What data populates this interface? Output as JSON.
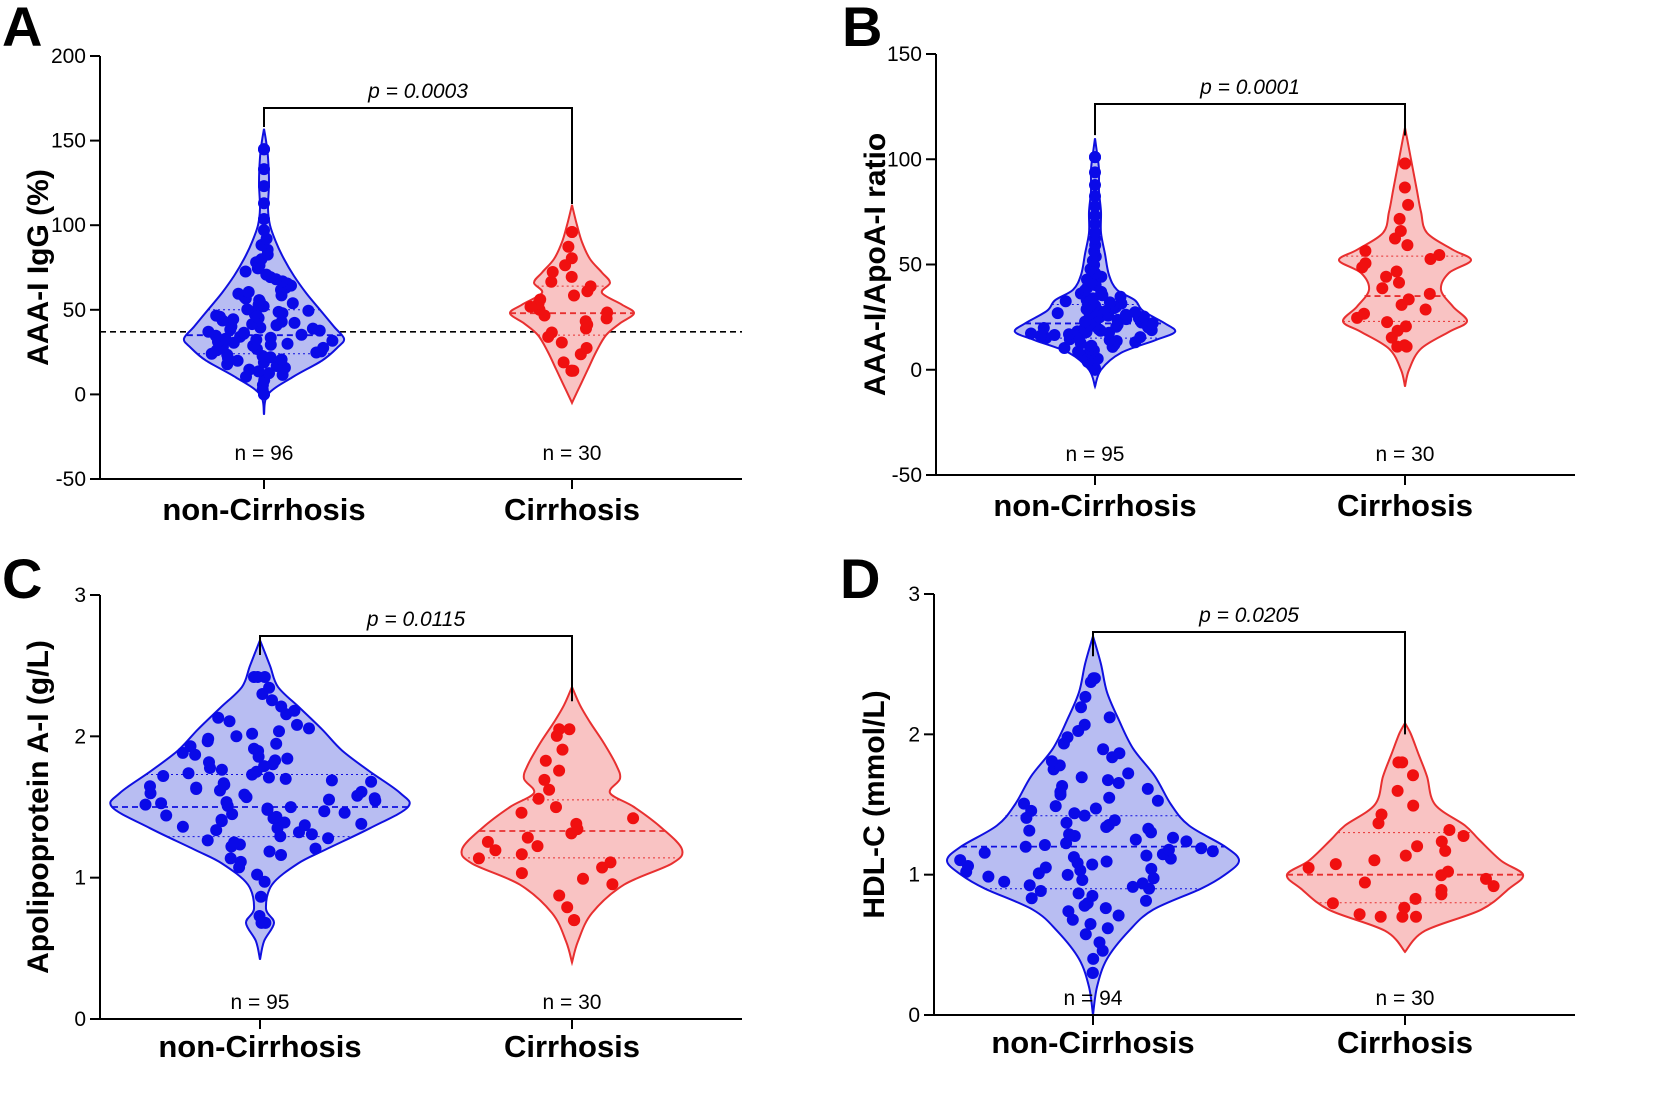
{
  "colors": {
    "non_cirrhosis_line": "#1010e0",
    "non_cirrhosis_fill": "#b8bdf2",
    "non_cirrhosis_dot": "#0a0ae8",
    "cirrhosis_line": "#e83030",
    "cirrhosis_fill": "#f9c3c3",
    "cirrhosis_dot": "#f01010",
    "axis": "#000000"
  },
  "chart_data": [
    {
      "id": "A",
      "type": "violin",
      "letter": "A",
      "ylabel": "AAA-I IgG (%)",
      "ylim": [
        -50,
        200
      ],
      "yticks": [
        -50,
        0,
        50,
        100,
        150,
        200
      ],
      "categories": [
        "non-Cirrhosis",
        "Cirrhosis"
      ],
      "n_labels": [
        "n = 96",
        "n = 30"
      ],
      "p_label": "p = 0.0003",
      "reference_line": 37,
      "groups": [
        {
          "name": "non-Cirrhosis",
          "n": 96,
          "min": 0,
          "max": 145,
          "q1": 24,
          "median": 35,
          "q3": 50,
          "density": [
            [
              -12,
              0
            ],
            [
              0,
              4
            ],
            [
              10,
              28
            ],
            [
              20,
              58
            ],
            [
              28,
              74
            ],
            [
              33,
              80
            ],
            [
              40,
              70
            ],
            [
              50,
              56
            ],
            [
              60,
              42
            ],
            [
              70,
              30
            ],
            [
              80,
              20
            ],
            [
              90,
              12
            ],
            [
              100,
              6
            ],
            [
              110,
              4
            ],
            [
              125,
              5
            ],
            [
              140,
              4
            ],
            [
              150,
              2
            ],
            [
              157,
              0
            ]
          ]
        },
        {
          "name": "Cirrhosis",
          "n": 30,
          "min": 14,
          "max": 96,
          "q1": 35,
          "median": 48,
          "q3": 64,
          "density": [
            [
              -5,
              0
            ],
            [
              5,
              8
            ],
            [
              15,
              16
            ],
            [
              25,
              24
            ],
            [
              35,
              34
            ],
            [
              42,
              48
            ],
            [
              48,
              62
            ],
            [
              53,
              50
            ],
            [
              60,
              30
            ],
            [
              66,
              38
            ],
            [
              72,
              30
            ],
            [
              80,
              18
            ],
            [
              90,
              10
            ],
            [
              100,
              5
            ],
            [
              112,
              0
            ]
          ]
        }
      ]
    },
    {
      "id": "B",
      "type": "violin",
      "letter": "B",
      "ylabel": "AAA-I/ApoA-I ratio",
      "ylim": [
        -50,
        150
      ],
      "yticks": [
        -50,
        0,
        50,
        100,
        150
      ],
      "categories": [
        "non-Cirrhosis",
        "Cirrhosis"
      ],
      "n_labels": [
        "n = 95",
        "n = 30"
      ],
      "p_label": "p = 0.0001",
      "groups": [
        {
          "name": "non-Cirrhosis",
          "n": 95,
          "min": 0,
          "max": 101,
          "q1": 15,
          "median": 22,
          "q3": 31,
          "density": [
            [
              -8,
              0
            ],
            [
              0,
              6
            ],
            [
              8,
              26
            ],
            [
              14,
              60
            ],
            [
              18,
              80
            ],
            [
              22,
              70
            ],
            [
              28,
              48
            ],
            [
              33,
              40
            ],
            [
              38,
              22
            ],
            [
              45,
              14
            ],
            [
              55,
              10
            ],
            [
              65,
              6
            ],
            [
              75,
              6
            ],
            [
              85,
              4
            ],
            [
              95,
              4
            ],
            [
              103,
              2
            ],
            [
              110,
              0
            ]
          ]
        },
        {
          "name": "Cirrhosis",
          "n": 30,
          "min": 11,
          "max": 98,
          "q1": 23,
          "median": 35,
          "q3": 54,
          "density": [
            [
              -8,
              0
            ],
            [
              0,
              4
            ],
            [
              10,
              16
            ],
            [
              18,
              44
            ],
            [
              23,
              62
            ],
            [
              30,
              48
            ],
            [
              38,
              36
            ],
            [
              46,
              44
            ],
            [
              52,
              66
            ],
            [
              57,
              48
            ],
            [
              65,
              22
            ],
            [
              75,
              16
            ],
            [
              85,
              12
            ],
            [
              95,
              8
            ],
            [
              105,
              4
            ],
            [
              115,
              0
            ]
          ]
        }
      ]
    },
    {
      "id": "C",
      "type": "violin",
      "letter": "C",
      "ylabel": "Apolipoprotein A-I (g/L)",
      "ylim": [
        0,
        3
      ],
      "yticks": [
        0,
        1,
        2,
        3
      ],
      "categories": [
        "non-Cirrhosis",
        "Cirrhosis"
      ],
      "n_labels": [
        "n = 95",
        "n = 30"
      ],
      "p_label": "p = 0.0115",
      "groups": [
        {
          "name": "non-Cirrhosis",
          "n": 95,
          "min": 0.68,
          "max": 2.42,
          "q1": 1.29,
          "median": 1.5,
          "q3": 1.73,
          "density": [
            [
              0.42,
              0
            ],
            [
              0.55,
              4
            ],
            [
              0.68,
              14
            ],
            [
              0.78,
              6
            ],
            [
              0.95,
              12
            ],
            [
              1.1,
              38
            ],
            [
              1.2,
              66
            ],
            [
              1.35,
              110
            ],
            [
              1.5,
              148
            ],
            [
              1.6,
              140
            ],
            [
              1.75,
              110
            ],
            [
              1.9,
              82
            ],
            [
              2.05,
              62
            ],
            [
              2.2,
              40
            ],
            [
              2.35,
              18
            ],
            [
              2.5,
              10
            ],
            [
              2.68,
              0
            ]
          ]
        },
        {
          "name": "Cirrhosis",
          "n": 30,
          "min": 0.7,
          "max": 2.05,
          "q1": 1.14,
          "median": 1.33,
          "q3": 1.55,
          "density": [
            [
              0.4,
              0
            ],
            [
              0.55,
              6
            ],
            [
              0.75,
              20
            ],
            [
              0.95,
              52
            ],
            [
              1.1,
              100
            ],
            [
              1.2,
              110
            ],
            [
              1.35,
              90
            ],
            [
              1.5,
              62
            ],
            [
              1.6,
              38
            ],
            [
              1.7,
              48
            ],
            [
              1.8,
              44
            ],
            [
              1.95,
              32
            ],
            [
              2.1,
              18
            ],
            [
              2.22,
              8
            ],
            [
              2.35,
              0
            ]
          ]
        }
      ]
    },
    {
      "id": "D",
      "type": "violin",
      "letter": "D",
      "ylabel": "HDL-C (mmol/L)",
      "ylim": [
        0,
        3
      ],
      "yticks": [
        0,
        1,
        2,
        3
      ],
      "categories": [
        "non-Cirrhosis",
        "Cirrhosis"
      ],
      "n_labels": [
        "n = 94",
        "n = 30"
      ],
      "p_label": "p = 0.0205",
      "groups": [
        {
          "name": "non-Cirrhosis",
          "n": 94,
          "min": 0.3,
          "max": 2.4,
          "q1": 0.9,
          "median": 1.2,
          "q3": 1.42,
          "density": [
            [
              0,
              0
            ],
            [
              0.2,
              4
            ],
            [
              0.4,
              14
            ],
            [
              0.6,
              36
            ],
            [
              0.75,
              60
            ],
            [
              0.9,
              108
            ],
            [
              1.0,
              132
            ],
            [
              1.1,
              146
            ],
            [
              1.2,
              132
            ],
            [
              1.35,
              96
            ],
            [
              1.5,
              78
            ],
            [
              1.7,
              62
            ],
            [
              1.9,
              40
            ],
            [
              2.1,
              26
            ],
            [
              2.3,
              14
            ],
            [
              2.5,
              8
            ],
            [
              2.7,
              0
            ]
          ]
        },
        {
          "name": "Cirrhosis",
          "n": 30,
          "min": 0.7,
          "max": 1.8,
          "q1": 0.8,
          "median": 1.0,
          "q3": 1.3,
          "density": [
            [
              0.45,
              0
            ],
            [
              0.6,
              20
            ],
            [
              0.75,
              76
            ],
            [
              0.9,
              104
            ],
            [
              1.0,
              118
            ],
            [
              1.1,
              96
            ],
            [
              1.25,
              74
            ],
            [
              1.35,
              60
            ],
            [
              1.5,
              30
            ],
            [
              1.7,
              22
            ],
            [
              1.85,
              14
            ],
            [
              2.0,
              6
            ],
            [
              2.08,
              0
            ]
          ]
        }
      ]
    }
  ]
}
